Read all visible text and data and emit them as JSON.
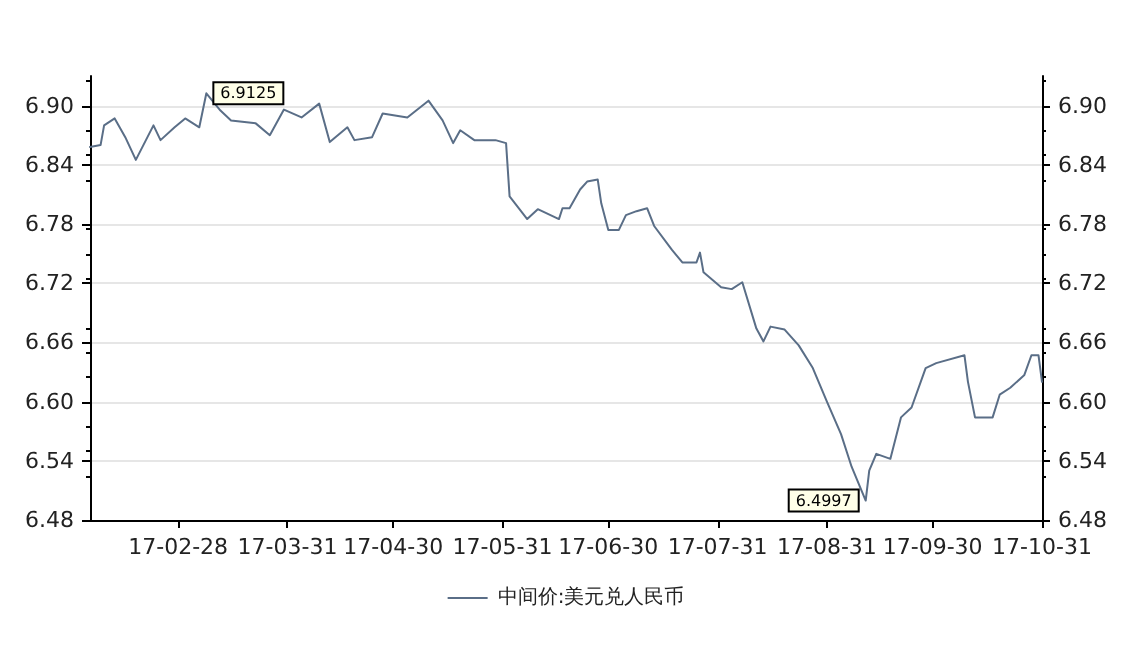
{
  "chart_data": {
    "type": "line",
    "x": [
      "--02-03",
      "--02-06",
      "--02-07",
      "--02-10",
      "--02-13",
      "--02-16",
      "--02-21",
      "--02-23",
      "--02-27",
      "--03-02",
      "--03-06",
      "--03-08",
      "--03-12",
      "--03-15",
      "--03-22",
      "--03-26",
      "--03-30",
      "--04-04",
      "--04-09",
      "--04-12",
      "--04-17",
      "--04-19",
      "--04-24",
      "--04-27",
      "--05-04",
      "--05-10",
      "--05-14",
      "--05-17",
      "--05-19",
      "--05-23",
      "--05-29",
      "--06-01",
      "--06-02",
      "--06-07",
      "--06-10",
      "--06-16",
      "--06-17",
      "--06-19",
      "--06-22",
      "--06-24",
      "--06-27",
      "--06-28",
      "--06-30",
      "--07-03",
      "--07-05",
      "--07-08",
      "--07-11",
      "--07-13",
      "--07-18",
      "--07-21",
      "--07-25",
      "--07-26",
      "--07-27",
      "--08-01",
      "--08-04",
      "--08-07",
      "--08-11",
      "--08-13",
      "--08-15",
      "--08-19",
      "--08-23",
      "--08-27",
      "--08-31",
      "--09-04",
      "--09-07",
      "--09-11",
      "--09-12",
      "--09-14",
      "--09-18",
      "--09-21",
      "--09-24",
      "--09-28",
      "--10-01",
      "--10-09",
      "--10-10",
      "--10-12",
      "--10-14",
      "--10-17",
      "--10-19",
      "--10-22",
      "--10-26",
      "--10-28",
      "--10-30",
      "--10-31"
    ],
    "series": [
      {
        "name": "中间价:美元兑人民币",
        "color": "#5a6e87",
        "values": [
          6.858,
          6.86,
          6.88,
          6.887,
          6.868,
          6.845,
          6.88,
          6.865,
          6.878,
          6.887,
          6.878,
          6.9125,
          6.895,
          6.885,
          6.882,
          6.87,
          6.896,
          6.888,
          6.902,
          6.863,
          6.878,
          6.865,
          6.868,
          6.892,
          6.888,
          6.905,
          6.885,
          6.862,
          6.875,
          6.865,
          6.865,
          6.862,
          6.808,
          6.785,
          6.795,
          6.785,
          6.796,
          6.796,
          6.815,
          6.823,
          6.825,
          6.801,
          6.774,
          6.774,
          6.789,
          6.793,
          6.796,
          6.778,
          6.754,
          6.741,
          6.741,
          6.751,
          6.731,
          6.716,
          6.714,
          6.721,
          6.674,
          6.661,
          6.676,
          6.673,
          6.657,
          6.634,
          6.6,
          6.567,
          6.534,
          6.4997,
          6.53,
          6.547,
          6.542,
          6.584,
          6.594,
          6.634,
          6.639,
          6.647,
          6.62,
          6.584,
          6.584,
          6.584,
          6.607,
          6.614,
          6.627,
          6.647,
          6.647,
          6.62
        ]
      }
    ],
    "xlim": [
      "--02-03",
      "--10-31"
    ],
    "xticks": [
      {
        "value": "--02-28",
        "label": "17-02-28"
      },
      {
        "value": "--03-31",
        "label": "17-03-31"
      },
      {
        "value": "--04-30",
        "label": "17-04-30"
      },
      {
        "value": "--05-31",
        "label": "17-05-31"
      },
      {
        "value": "--06-30",
        "label": "17-06-30"
      },
      {
        "value": "--07-31",
        "label": "17-07-31"
      },
      {
        "value": "--08-31",
        "label": "17-08-31"
      },
      {
        "value": "--09-30",
        "label": "17-09-30"
      },
      {
        "value": "--10-31",
        "label": "17-10-31"
      }
    ],
    "ylim": [
      6.48,
      6.93
    ],
    "yticks": [
      {
        "value": 6.48,
        "label": "6.48"
      },
      {
        "value": 6.54,
        "label": "6.54"
      },
      {
        "value": 6.6,
        "label": "6.60"
      },
      {
        "value": 6.66,
        "label": "6.66"
      },
      {
        "value": 6.72,
        "label": "6.72"
      },
      {
        "value": 6.78,
        "label": "6.78"
      },
      {
        "value": 6.84,
        "label": "6.84"
      },
      {
        "value": 6.9,
        "label": "6.90"
      }
    ],
    "y2lim": [
      6.48,
      6.93
    ],
    "y2ticks": [
      {
        "value": 6.48,
        "label": "6.48"
      },
      {
        "value": 6.54,
        "label": "6.54"
      },
      {
        "value": 6.6,
        "label": "6.60"
      },
      {
        "value": 6.66,
        "label": "6.66"
      },
      {
        "value": 6.72,
        "label": "6.72"
      },
      {
        "value": 6.78,
        "label": "6.78"
      },
      {
        "value": 6.84,
        "label": "6.84"
      },
      {
        "value": 6.9,
        "label": "6.90"
      }
    ],
    "annotations": [
      {
        "text": "6.9125",
        "x": "--03-08",
        "y": 6.9125
      },
      {
        "text": "6.4997",
        "x": "--09-11",
        "y": 6.4997
      }
    ],
    "grid": "y",
    "legend": "bottom",
    "marker": "none",
    "line_style": "solid"
  }
}
